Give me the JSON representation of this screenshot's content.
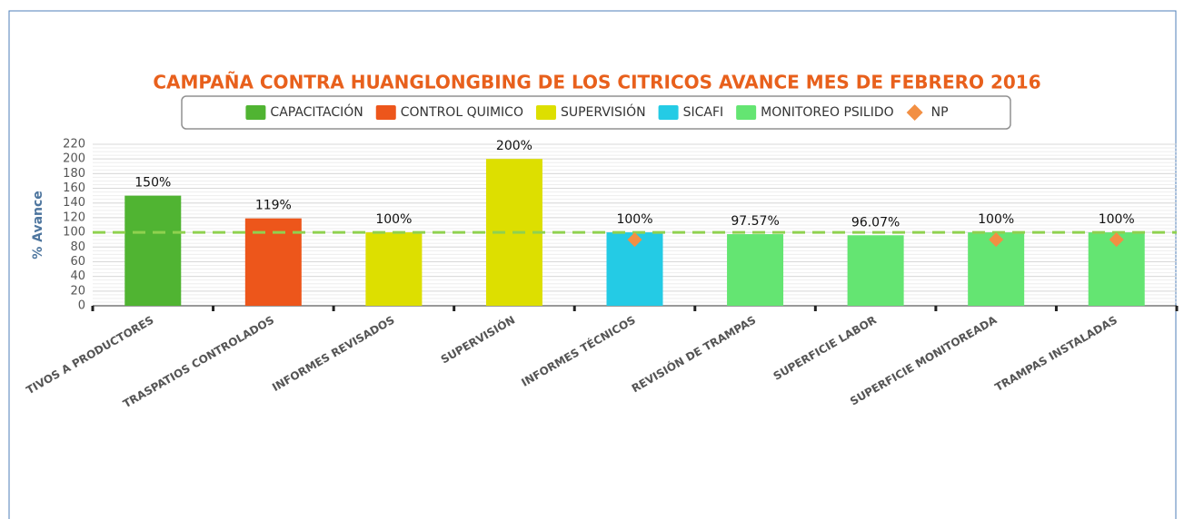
{
  "chart_data": {
    "type": "bar",
    "title": "CAMPAÑA CONTRA HUANGLONGBING DE LOS CITRICOS AVANCE MES DE FEBRERO 2016",
    "y_label": "% Avance",
    "categories": [
      "TIVOS A PRODUCTORES",
      "TRASPATIOS CONTROLADOS",
      "INFORMES REVISADOS",
      "SUPERVISIÓN",
      "INFORMES TÉCNICOS",
      "REVISIÓN DE TRAMPAS",
      "SUPERFICIE LABOR",
      "SUPERFICIE MONITOREADA",
      "TRAMPAS INSTALADAS"
    ],
    "series": [
      {
        "name": "CAPACITACIÓN",
        "color": "#50b432",
        "values": [
          150,
          null,
          null,
          null,
          null,
          null,
          null,
          null,
          null
        ],
        "value_labels": [
          "150%",
          null,
          null,
          null,
          null,
          null,
          null,
          null,
          null
        ]
      },
      {
        "name": "CONTROL QUIMICO",
        "color": "#ed561b",
        "values": [
          null,
          119,
          null,
          null,
          null,
          null,
          null,
          null,
          null
        ],
        "value_labels": [
          null,
          "119%",
          null,
          null,
          null,
          null,
          null,
          null,
          null
        ]
      },
      {
        "name": "SUPERVISIÓN",
        "color": "#dddf00",
        "values": [
          null,
          null,
          100,
          200,
          null,
          null,
          null,
          null,
          null
        ],
        "value_labels": [
          null,
          null,
          "100%",
          "200%",
          null,
          null,
          null,
          null,
          null
        ]
      },
      {
        "name": "SICAFI",
        "color": "#24cbe5",
        "values": [
          null,
          null,
          null,
          null,
          100,
          null,
          null,
          null,
          null
        ],
        "value_labels": [
          null,
          null,
          null,
          null,
          "100%",
          null,
          null,
          null,
          null
        ]
      },
      {
        "name": "MONITOREO PSILIDO",
        "color": "#64e572",
        "values": [
          null,
          null,
          null,
          null,
          null,
          97.57,
          96.07,
          100,
          100
        ],
        "value_labels": [
          null,
          null,
          null,
          null,
          null,
          "97.57%",
          "96.07%",
          "100%",
          "100%"
        ]
      },
      {
        "name": "NP",
        "type": "scatter",
        "color": "#f28f43",
        "values": [
          null,
          null,
          null,
          null,
          90,
          null,
          null,
          90,
          90
        ]
      }
    ],
    "ylim": [
      0,
      220
    ],
    "yticks": [
      0,
      20,
      40,
      60,
      80,
      100,
      120,
      140,
      160,
      180,
      200,
      220
    ],
    "grid": true,
    "reference_line": 100
  }
}
